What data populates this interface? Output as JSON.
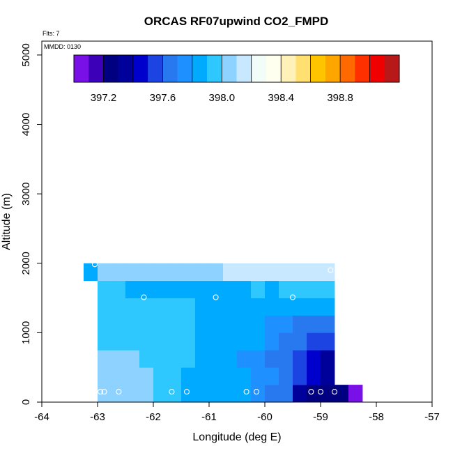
{
  "chart_data": {
    "type": "heatmap",
    "title": "ORCAS RF07upwind CO2_FMPD",
    "flights_note": "Flts: 7",
    "date_note": "MMDD: 0130",
    "xlabel": "Longitude (deg E)",
    "ylabel": "Altitude (m)",
    "xlim": [
      -64,
      -57
    ],
    "ylim": [
      0,
      5200
    ],
    "x_ticks": [
      "-64",
      "-63",
      "-62",
      "-61",
      "-60",
      "-59",
      "-58",
      "-57"
    ],
    "y_ticks": [
      "0",
      "1000",
      "2000",
      "3000",
      "4000",
      "5000"
    ],
    "colorbar": {
      "min": 397.0,
      "max": 399.2,
      "tick_values": [
        397.2,
        397.6,
        398.0,
        398.4,
        398.8
      ],
      "tick_labels": [
        "397.2",
        "397.6",
        "398.0",
        "398.4",
        "398.8"
      ],
      "colors": [
        "#7a10e8",
        "#3c00b8",
        "#000080",
        "#00009a",
        "#0000cd",
        "#1c44e2",
        "#2878f0",
        "#1e90ff",
        "#00aaff",
        "#2ec8ff",
        "#8ed2ff",
        "#c8e8ff",
        "#f2fcf8",
        "#fffff0",
        "#fff2b8",
        "#ffe070",
        "#ffc400",
        "#ffa500",
        "#ff6a00",
        "#ff3000",
        "#f00000",
        "#b81818"
      ]
    },
    "cell_size": {
      "dlon": 0.25,
      "dalt": 250
    },
    "rows": [
      {
        "alt": 125,
        "lon_start": -63.0,
        "values": [
          398.08,
          398.04,
          398.02,
          398.0,
          397.96,
          397.94,
          397.9,
          397.88,
          397.84,
          397.86,
          397.84,
          397.78,
          397.7,
          397.6,
          397.38,
          397.26,
          397.26,
          397.28,
          397.06
        ]
      },
      {
        "alt": 375,
        "lon_start": -63.0,
        "values": [
          398.06,
          398.04,
          398.0,
          398.0,
          397.96,
          397.92,
          397.9,
          397.9,
          397.86,
          397.8,
          397.82,
          397.78,
          397.72,
          397.62,
          397.5,
          397.42,
          397.3
        ]
      },
      {
        "alt": 625,
        "lon_start": -63.0,
        "values": [
          398.04,
          398.02,
          398.0,
          397.98,
          397.98,
          397.94,
          397.92,
          397.9,
          397.86,
          397.8,
          397.78,
          397.72,
          397.68,
          397.66,
          397.52,
          397.44,
          397.36
        ]
      },
      {
        "alt": 875,
        "lon_start": -63.0,
        "values": [
          397.98,
          397.98,
          397.96,
          397.94,
          397.92,
          397.92,
          397.92,
          397.9,
          397.86,
          397.82,
          397.8,
          397.8,
          397.74,
          397.7,
          397.62,
          397.54,
          397.58
        ]
      },
      {
        "alt": 1125,
        "lon_start": -63.0,
        "values": [
          397.96,
          397.96,
          397.92,
          397.92,
          397.92,
          397.92,
          397.92,
          397.9,
          397.86,
          397.84,
          397.84,
          397.82,
          397.76,
          397.72,
          397.7,
          397.68,
          397.68
        ]
      },
      {
        "alt": 1375,
        "lon_start": -63.0,
        "values": [
          397.98,
          397.96,
          397.92,
          397.94,
          397.92,
          397.92,
          397.92,
          397.9,
          397.9,
          397.88,
          397.88,
          397.86,
          397.84,
          397.82,
          397.8,
          397.8,
          397.8
        ]
      },
      {
        "alt": 1625,
        "lon_start": -63.0,
        "values": [
          397.94,
          397.92,
          397.9,
          397.9,
          397.9,
          397.9,
          397.9,
          397.9,
          397.9,
          397.9,
          397.9,
          397.92,
          397.9,
          397.92,
          397.96,
          397.98,
          397.96
        ]
      },
      {
        "alt": 1875,
        "lon_start": -63.25,
        "values": [
          397.9,
          398.02,
          398.02,
          398.02,
          398.02,
          398.02,
          398.04,
          398.04,
          398.06,
          398.08,
          398.1,
          398.12,
          398.12,
          398.12,
          398.14,
          398.14,
          398.16,
          398.2
        ]
      }
    ],
    "flight_points": [
      {
        "lon": -62.95,
        "alt": 150
      },
      {
        "lon": -62.88,
        "alt": 150
      },
      {
        "lon": -62.62,
        "alt": 150
      },
      {
        "lon": -61.67,
        "alt": 150
      },
      {
        "lon": -61.4,
        "alt": 150
      },
      {
        "lon": -60.33,
        "alt": 150
      },
      {
        "lon": -60.15,
        "alt": 150
      },
      {
        "lon": -59.17,
        "alt": 150
      },
      {
        "lon": -59.0,
        "alt": 150
      },
      {
        "lon": -58.75,
        "alt": 150
      },
      {
        "lon": -62.17,
        "alt": 1510
      },
      {
        "lon": -60.88,
        "alt": 1510
      },
      {
        "lon": -59.5,
        "alt": 1510
      },
      {
        "lon": -63.05,
        "alt": 1985
      },
      {
        "lon": -58.82,
        "alt": 1900
      }
    ]
  }
}
